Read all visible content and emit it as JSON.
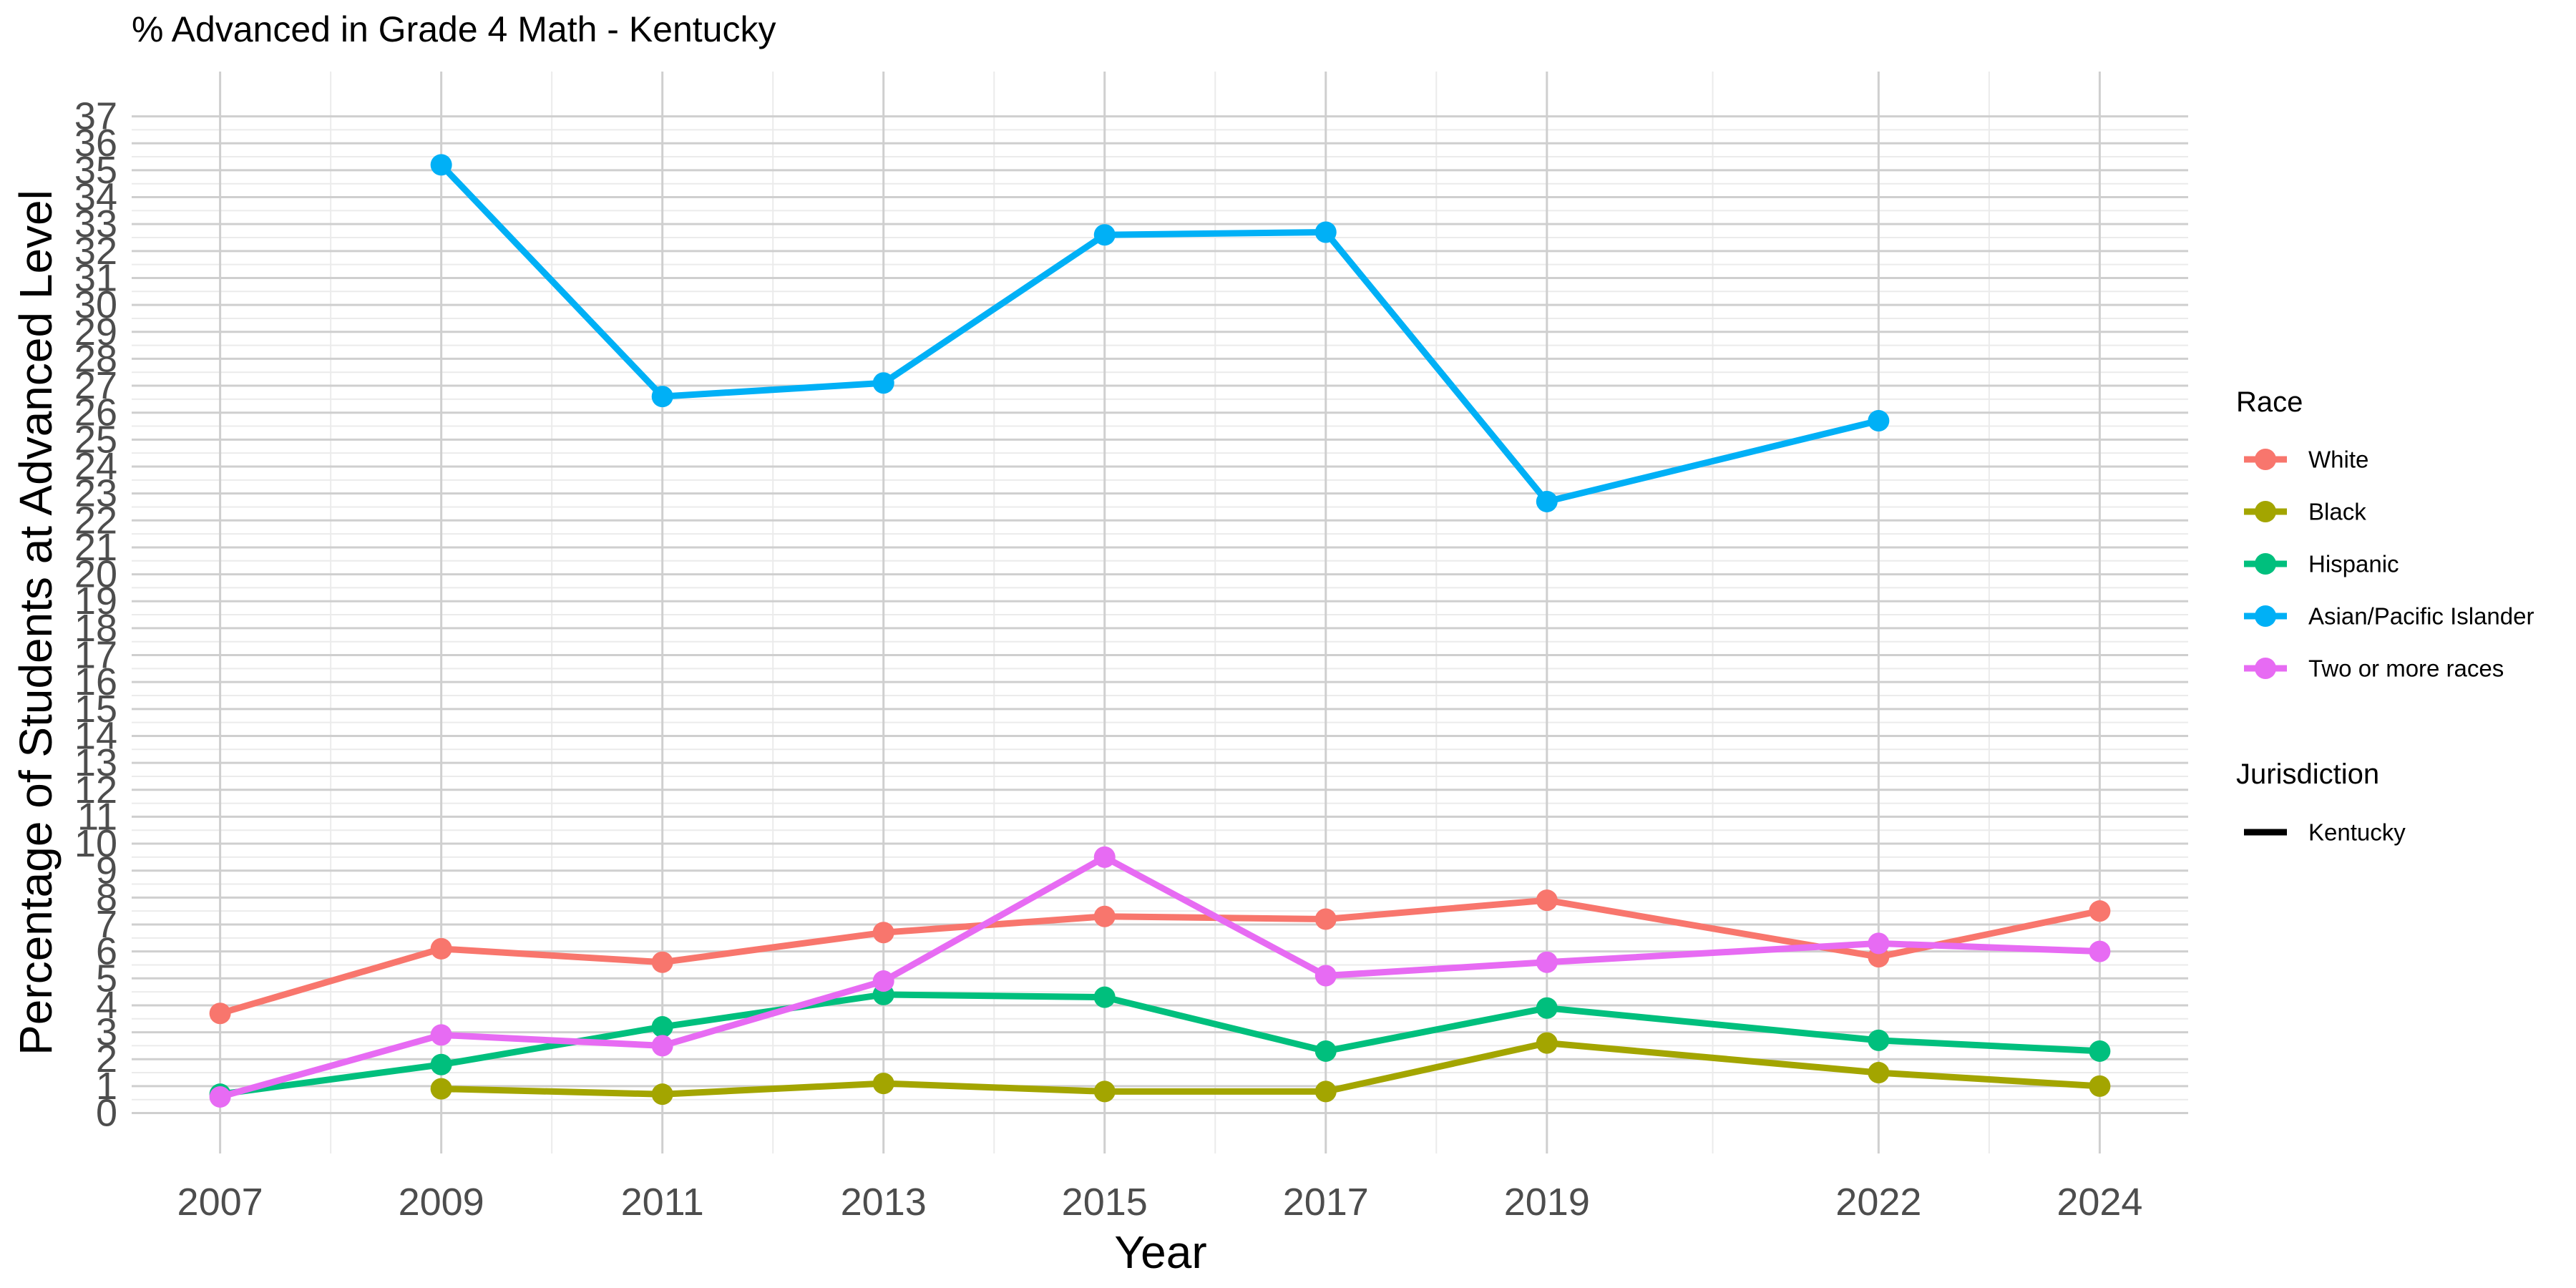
{
  "chart_data": {
    "type": "line",
    "title": "% Advanced in Grade 4 Math - Kentucky",
    "xlabel": "Year",
    "ylabel": "Percentage of Students at Advanced Level",
    "x_ticks": [
      2007,
      2009,
      2011,
      2013,
      2015,
      2017,
      2019,
      2022,
      2024
    ],
    "y_ticks": [
      0,
      1,
      2,
      3,
      4,
      5,
      6,
      7,
      8,
      9,
      10,
      11,
      12,
      13,
      14,
      15,
      16,
      17,
      18,
      19,
      20,
      21,
      22,
      23,
      24,
      25,
      26,
      27,
      28,
      29,
      30,
      31,
      32,
      33,
      34,
      35,
      36,
      37
    ],
    "xlim": [
      2006.2,
      2024.8
    ],
    "ylim": [
      -1.5,
      37.6
    ],
    "grid": true,
    "legend_placement": "right",
    "legend_title": "Race",
    "series": [
      {
        "name": "White",
        "color": "#F8766D",
        "points": [
          [
            2007,
            3.7
          ],
          [
            2009,
            6.1
          ],
          [
            2011,
            5.6
          ],
          [
            2013,
            6.7
          ],
          [
            2015,
            7.3
          ],
          [
            2017,
            7.2
          ],
          [
            2019,
            7.9
          ],
          [
            2022,
            5.8
          ],
          [
            2024,
            7.5
          ]
        ]
      },
      {
        "name": "Black",
        "color": "#A3A500",
        "points": [
          [
            2009,
            0.9
          ],
          [
            2011,
            0.7
          ],
          [
            2013,
            1.1
          ],
          [
            2015,
            0.8
          ],
          [
            2017,
            0.8
          ],
          [
            2019,
            2.6
          ],
          [
            2022,
            1.5
          ],
          [
            2024,
            1.0
          ]
        ]
      },
      {
        "name": "Hispanic",
        "color": "#00BF7D",
        "points": [
          [
            2007,
            0.7
          ],
          [
            2009,
            1.8
          ],
          [
            2011,
            3.2
          ],
          [
            2013,
            4.4
          ],
          [
            2015,
            4.3
          ],
          [
            2017,
            2.3
          ],
          [
            2019,
            3.9
          ],
          [
            2022,
            2.7
          ],
          [
            2024,
            2.3
          ]
        ]
      },
      {
        "name": "Asian/Pacific Islander",
        "color": "#00B0F6",
        "points": [
          [
            2009,
            35.2
          ],
          [
            2011,
            26.6
          ],
          [
            2013,
            27.1
          ],
          [
            2015,
            32.6
          ],
          [
            2017,
            32.7
          ],
          [
            2019,
            22.7
          ],
          [
            2022,
            25.7
          ]
        ]
      },
      {
        "name": "Two or more races",
        "color": "#E76BF3",
        "points": [
          [
            2007,
            0.6
          ],
          [
            2009,
            2.9
          ],
          [
            2011,
            2.5
          ],
          [
            2013,
            4.9
          ],
          [
            2015,
            9.5
          ],
          [
            2017,
            5.1
          ],
          [
            2019,
            5.6
          ],
          [
            2022,
            6.3
          ],
          [
            2024,
            6.0
          ]
        ]
      }
    ],
    "legend2_title": "Jurisdiction",
    "legend2_items": [
      {
        "name": "Kentucky",
        "color": "#000000"
      }
    ]
  }
}
